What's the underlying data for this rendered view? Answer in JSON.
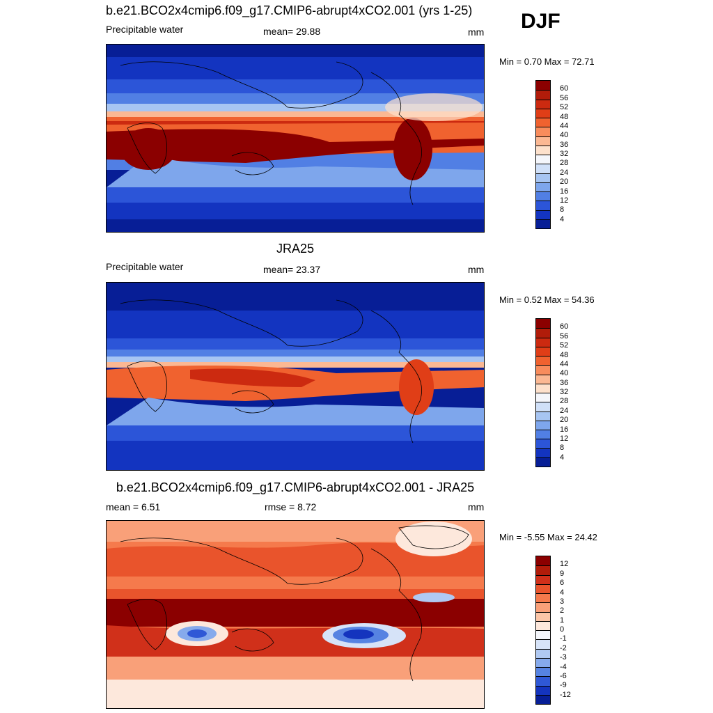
{
  "season": "DJF",
  "panels": [
    {
      "title": "b.e21.BCO2x4cmip6.f09_g17.CMIP6-abrupt4xCO2.001 (yrs 1-25)",
      "left_label": "Precipitable water",
      "center_label": "mean=  29.88",
      "units": "mm",
      "minmax": "Min =   0.70 Max =  72.71",
      "colorbar": {
        "labels": [
          "60",
          "56",
          "52",
          "48",
          "44",
          "40",
          "36",
          "32",
          "28",
          "24",
          "20",
          "16",
          "12",
          "8",
          "4"
        ],
        "colors": [
          "#8b0000",
          "#b11c0a",
          "#cc2a10",
          "#e03e17",
          "#f0622f",
          "#f88c5c",
          "#fbb893",
          "#fde1cc",
          "#f4f6fb",
          "#d0e0f8",
          "#a7c5f2",
          "#7ea6ec",
          "#517fe4",
          "#2c55d8",
          "#1334c0",
          "#071e96"
        ]
      }
    },
    {
      "title": "JRA25",
      "left_label": "Precipitable water",
      "center_label": "mean=  23.37",
      "units": "mm",
      "minmax": "Min =   0.52 Max =  54.36",
      "colorbar": {
        "labels": [
          "60",
          "56",
          "52",
          "48",
          "44",
          "40",
          "36",
          "32",
          "28",
          "24",
          "20",
          "16",
          "12",
          "8",
          "4"
        ],
        "colors": [
          "#8b0000",
          "#b11c0a",
          "#cc2a10",
          "#e03e17",
          "#f0622f",
          "#f88c5c",
          "#fbb893",
          "#fde1cc",
          "#f4f6fb",
          "#d0e0f8",
          "#a7c5f2",
          "#7ea6ec",
          "#517fe4",
          "#2c55d8",
          "#1334c0",
          "#071e96"
        ]
      }
    },
    {
      "title": "b.e21.BCO2x4cmip6.f09_g17.CMIP6-abrupt4xCO2.001 - JRA25",
      "left_label": "mean =   6.51",
      "center_label": "rmse =   8.72",
      "units": "mm",
      "minmax": "Min =  -5.55 Max =  24.42",
      "colorbar": {
        "labels": [
          "12",
          "9",
          "6",
          "4",
          "3",
          "2",
          "1",
          "0",
          "-1",
          "-2",
          "-3",
          "-4",
          "-6",
          "-9",
          "-12"
        ],
        "colors": [
          "#8b0000",
          "#b11c0a",
          "#d0301a",
          "#e9542c",
          "#f57a4c",
          "#f9a079",
          "#fcc6a8",
          "#fde8dc",
          "#f4f6fb",
          "#d6e3f8",
          "#b0c9f2",
          "#86aaec",
          "#5683e2",
          "#2f58d6",
          "#1434be",
          "#071e96"
        ]
      }
    }
  ]
}
